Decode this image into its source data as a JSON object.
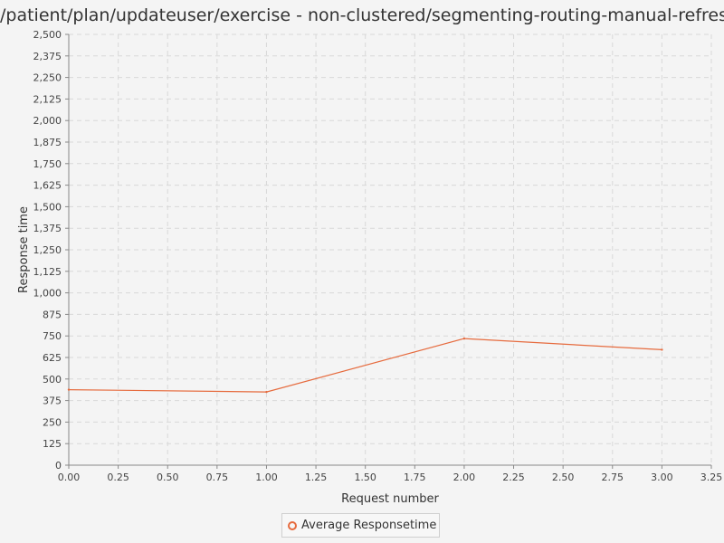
{
  "colors": {
    "series": "#e66b3e",
    "grid": "#d8d8d8",
    "axis": "#888888"
  },
  "chart_data": {
    "type": "line",
    "title": "/patient/plan/updateuser/exercise - non-clustered/segmenting-routing-manual-refresh",
    "xlabel": "Request number",
    "ylabel": "Response time",
    "xlim": [
      0,
      3.25
    ],
    "ylim": [
      0,
      2500
    ],
    "xticks": [
      "0.00",
      "0.25",
      "0.50",
      "0.75",
      "1.00",
      "1.25",
      "1.50",
      "1.75",
      "2.00",
      "2.25",
      "2.50",
      "2.75",
      "3.00",
      "3.25"
    ],
    "yticks": [
      "0",
      "125",
      "250",
      "375",
      "500",
      "625",
      "750",
      "875",
      "1,000",
      "1,125",
      "1,250",
      "1,375",
      "1,500",
      "1,625",
      "1,750",
      "1,875",
      "2,000",
      "2,125",
      "2,250",
      "2,375",
      "2,500"
    ],
    "grid": true,
    "legend_position": "bottom",
    "series": [
      {
        "name": "Average Responsetime",
        "x": [
          0,
          1,
          2,
          3
        ],
        "y": [
          438,
          425,
          735,
          670
        ]
      }
    ]
  }
}
